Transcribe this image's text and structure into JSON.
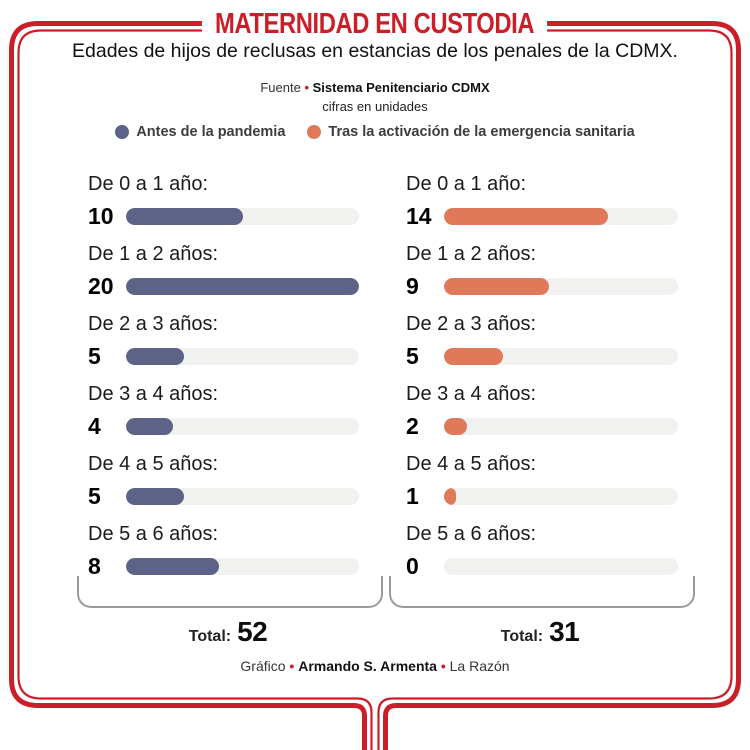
{
  "header": {
    "title": "MATERNIDAD EN CUSTODIA",
    "subtitle": "Edades de hijos de reclusas en estancias de los penales de la CDMX.",
    "source_prefix": "Fuente",
    "source_name": "Sistema Penitenciario CDMX",
    "units_note": "cifras en unidades",
    "bullet": "•"
  },
  "legend": [
    {
      "label": "Antes de la pandemia",
      "color": "#5d6386"
    },
    {
      "label": "Tras la activación de la emergencia sanitaria",
      "color": "#e0795a"
    }
  ],
  "chart_data": {
    "type": "bar",
    "orientation": "horizontal",
    "categories": [
      "De 0 a 1 año:",
      "De 1 a 2 años:",
      "De 2 a 3 años:",
      "De 3 a 4 años:",
      "De 4 a 5 años:",
      "De 5 a 6 años:"
    ],
    "series": [
      {
        "name": "Antes de la pandemia",
        "color": "#5d6386",
        "values": [
          10,
          20,
          5,
          4,
          5,
          8
        ],
        "total": 52
      },
      {
        "name": "Tras la activación de la emergencia sanitaria",
        "color": "#e0795a",
        "values": [
          14,
          9,
          5,
          2,
          1,
          0
        ],
        "total": 31
      }
    ],
    "xlim": [
      0,
      20
    ],
    "track_color": "#f1f1ef",
    "grid": false,
    "legend_position": "top"
  },
  "totals": {
    "label": "Total:"
  },
  "footer": {
    "credit_prefix": "Gráfico",
    "credit_name": "Armando S. Armenta",
    "credit_source": "La Razón",
    "bullet": "•"
  },
  "colors": {
    "accent_red": "#cb1e28",
    "bar_before": "#5d6386",
    "bar_after": "#e0795a",
    "track": "#f1f1ef",
    "bracket_gray": "#9b9b9b"
  }
}
